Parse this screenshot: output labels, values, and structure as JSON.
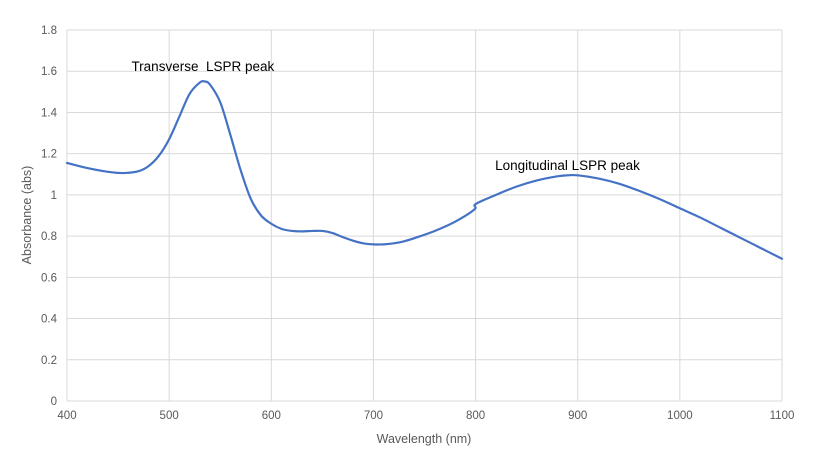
{
  "chart_data": {
    "type": "line",
    "title": "",
    "xlabel": "Wavelength (nm)",
    "ylabel": "Absorbance (abs)",
    "xlim": [
      400,
      1100
    ],
    "ylim": [
      0,
      1.8
    ],
    "x_ticks": [
      400,
      500,
      600,
      700,
      800,
      900,
      1000,
      1100
    ],
    "y_ticks": [
      0,
      0.2,
      0.4,
      0.6,
      0.8,
      1,
      1.2,
      1.4,
      1.6,
      1.8
    ],
    "y_tick_labels": [
      "0",
      "0.2",
      "0.4",
      "0.6",
      "0.8",
      "1",
      "1.2",
      "1.4",
      "1.6",
      "1.8"
    ],
    "x_tick_labels": [
      "400",
      "500",
      "600",
      "700",
      "800",
      "900",
      "1000",
      "1100"
    ],
    "grid": "vertical and horizontal",
    "legend": "none",
    "series_color": "#4472c4",
    "series": [
      {
        "x": [
          400,
          420,
          440,
          455,
          470,
          480,
          490,
          500,
          510,
          520,
          530,
          535,
          540,
          550,
          560,
          570,
          580,
          590,
          600,
          610,
          620,
          630,
          640,
          650,
          660,
          670,
          680,
          690,
          700,
          710,
          720,
          730,
          740,
          760,
          780,
          799,
          800,
          820,
          840,
          860,
          880,
          890,
          900,
          920,
          940,
          960,
          980,
          1000,
          1020,
          1040,
          1060,
          1080,
          1100
        ],
        "y": [
          1.155,
          1.13,
          1.112,
          1.106,
          1.115,
          1.14,
          1.19,
          1.27,
          1.38,
          1.49,
          1.545,
          1.55,
          1.535,
          1.45,
          1.29,
          1.12,
          0.98,
          0.9,
          0.86,
          0.835,
          0.825,
          0.823,
          0.825,
          0.825,
          0.815,
          0.795,
          0.778,
          0.765,
          0.76,
          0.76,
          0.765,
          0.775,
          0.79,
          0.825,
          0.87,
          0.93,
          0.955,
          1.0,
          1.04,
          1.07,
          1.09,
          1.095,
          1.095,
          1.08,
          1.055,
          1.02,
          0.98,
          0.935,
          0.89,
          0.84,
          0.79,
          0.74,
          0.69
        ]
      }
    ],
    "annotations": [
      {
        "text": "Transverse  LSPR peak",
        "x": 533,
        "y": 1.6
      },
      {
        "text": "Longitudinal LSPR peak",
        "x": 890,
        "y": 1.12
      }
    ]
  }
}
